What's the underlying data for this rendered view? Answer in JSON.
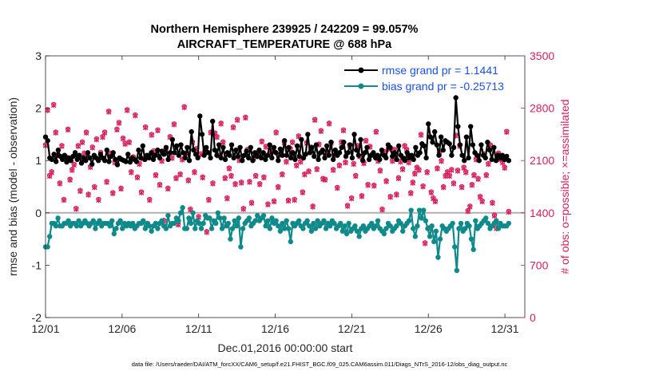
{
  "chart_data": {
    "type": "line",
    "title": "Northern Hemisphere 239925 / 242209 = 99.057%",
    "subtitle": "AIRCRAFT_TEMPERATURE @ 688 hPa",
    "xlabel": "Dec.01,2016 00:00:00 start",
    "ylabel_left": "rmse and bias (model - observation)",
    "ylabel_right": "# of obs: o=possible; ×=assimilated",
    "footer": "data file: /Users/raeder/DAI/ATM_forcXX/CAM6_setup/f.e21.FHIST_BGC.f09_025.CAM6assim.011/Diags_NTrS_2016-12/obs_diag_output.nc",
    "xlim": [
      1,
      32.3
    ],
    "ylim_left": [
      -2,
      3
    ],
    "ylim_right": [
      0,
      3500
    ],
    "x_ticks": [
      1,
      6,
      11,
      16,
      21,
      26,
      31
    ],
    "x_tick_labels": [
      "12/01",
      "12/06",
      "12/11",
      "12/16",
      "12/21",
      "12/26",
      "12/31"
    ],
    "y_ticks_left": [
      -2,
      -1,
      0,
      1,
      2,
      3
    ],
    "y_tick_labels_left": [
      "-2",
      "-1",
      "0",
      "1",
      "2",
      "3"
    ],
    "y_ticks_right": [
      0,
      700,
      1400,
      2100,
      2800,
      3500
    ],
    "y_tick_labels_right": [
      "0",
      "700",
      "1400",
      "2100",
      "2800",
      "3500"
    ],
    "zero_line": 0,
    "colors": {
      "rmse": "#000000",
      "bias": "#0f8a8a",
      "obs": "#d81e5b",
      "zero": "#b0b0b0",
      "legend_text": "#1a50e6"
    },
    "legend": {
      "position": "top-right",
      "entries": [
        "rmse grand pr = 1.1441",
        "bias grand pr = -0.25713"
      ]
    },
    "series": [
      {
        "name": "rmse",
        "values": [
          1.45,
          1.38,
          1.05,
          1.02,
          1.12,
          0.98,
          1.2,
          1.08,
          1.02,
          1.1,
          0.97,
          1.05,
          1.0,
          1.08,
          1.15,
          1.02,
          1.1,
          0.95,
          1.05,
          1.0,
          1.15,
          1.05,
          0.93,
          1.1,
          1.05,
          1.0,
          1.12,
          1.05,
          1.0,
          1.2,
          0.98,
          1.08,
          1.15,
          1.02,
          0.92,
          1.05,
          1.02,
          1.0,
          0.98,
          1.12,
          0.97,
          1.05,
          1.02,
          0.98,
          1.2,
          1.05,
          1.28,
          1.02,
          1.1,
          1.05,
          1.15,
          1.02,
          1.1,
          1.2,
          1.05,
          1.18,
          1.12,
          1.25,
          1.02,
          1.15,
          1.4,
          1.15,
          1.28,
          1.1,
          1.3,
          1.15,
          1.05,
          1.25,
          1.0,
          1.55,
          1.2,
          1.12,
          1.05,
          1.85,
          1.5,
          1.1,
          1.25,
          1.15,
          1.05,
          1.75,
          1.2,
          1.1,
          1.3,
          1.05,
          1.25,
          1.02,
          1.15,
          1.1,
          1.3,
          1.05,
          1.2,
          1.08,
          1.25,
          1.0,
          1.1,
          1.18,
          1.05,
          1.25,
          1.0,
          1.15,
          1.08,
          1.2,
          1.05,
          1.15,
          1.02,
          1.1,
          1.3,
          1.05,
          1.25,
          1.15,
          1.0,
          1.22,
          1.1,
          1.38,
          1.1,
          1.25,
          1.05,
          1.15,
          1.02,
          1.28,
          1.08,
          1.4,
          1.05,
          1.12,
          1.5,
          1.15,
          1.25,
          1.08,
          1.3,
          1.02,
          1.15,
          1.2,
          1.05,
          1.28,
          1.1,
          1.35,
          1.02,
          1.2,
          1.1,
          1.15,
          1.25,
          1.35,
          1.08,
          1.15,
          1.3,
          1.05,
          1.5,
          1.2,
          1.1,
          1.4,
          1.0,
          1.15,
          1.25,
          1.02,
          1.1,
          1.15,
          1.05,
          1.1,
          1.02,
          1.2,
          1.1,
          1.05,
          1.3,
          1.25,
          1.08,
          1.15,
          1.02,
          1.28,
          1.1,
          1.05,
          1.0,
          1.15,
          1.05,
          1.1,
          1.02,
          1.25,
          1.1,
          1.15,
          1.32,
          1.28,
          1.05,
          1.7,
          1.45,
          1.35,
          1.55,
          1.3,
          1.1,
          1.45,
          1.2,
          1.38,
          1.35,
          1.32,
          1.1,
          1.25,
          2.2,
          1.65,
          1.3,
          1.1,
          1.0,
          1.45,
          1.05,
          1.65,
          1.3,
          1.15,
          1.1,
          1.0,
          1.3,
          1.1,
          1.05,
          1.35,
          1.2,
          1.02,
          1.25,
          1.0,
          1.1,
          1.05,
          1.1,
          1.02,
          1.08,
          1.0
        ]
      },
      {
        "name": "bias",
        "values": [
          -0.65,
          -0.65,
          -0.45,
          -0.2,
          -0.2,
          -0.25,
          -0.1,
          -0.25,
          -0.25,
          -0.2,
          -0.2,
          -0.15,
          -0.25,
          -0.2,
          -0.2,
          -0.25,
          -0.15,
          -0.25,
          -0.2,
          -0.15,
          -0.2,
          -0.25,
          -0.2,
          -0.15,
          -0.3,
          -0.2,
          -0.15,
          -0.25,
          -0.2,
          -0.2,
          -0.2,
          -0.25,
          -0.15,
          -0.4,
          -0.3,
          -0.2,
          -0.15,
          -0.3,
          -0.2,
          -0.25,
          -0.2,
          -0.25,
          -0.2,
          -0.3,
          -0.25,
          -0.2,
          -0.2,
          -0.15,
          -0.3,
          -0.2,
          -0.25,
          -0.35,
          -0.25,
          -0.2,
          -0.3,
          -0.2,
          -0.15,
          -0.25,
          -0.3,
          -0.05,
          -0.25,
          -0.2,
          -0.2,
          -0.1,
          -0.15,
          0.0,
          0.1,
          -0.3,
          -0.3,
          -0.1,
          -0.2,
          0.0,
          -0.3,
          -0.15,
          -0.2,
          -0.3,
          -0.2,
          -0.05,
          -0.1,
          -0.1,
          -0.3,
          -0.15,
          -0.2,
          0.0,
          -0.1,
          -0.3,
          -0.1,
          -0.25,
          -0.2,
          -0.5,
          -0.3,
          -0.15,
          -0.25,
          -0.1,
          -0.65,
          -0.3,
          -0.2,
          -0.15,
          -0.1,
          -0.25,
          -0.2,
          -0.15,
          -0.05,
          -0.15,
          -0.1,
          -0.05,
          -0.25,
          -0.15,
          -0.3,
          -0.1,
          -0.2,
          -0.15,
          -0.25,
          -0.35,
          -0.2,
          -0.3,
          -0.15,
          -0.3,
          -0.55,
          -0.2,
          -0.25,
          -0.2,
          -0.15,
          -0.25,
          -0.3,
          -0.2,
          -0.15,
          -0.25,
          -0.35,
          -0.2,
          -0.3,
          -0.15,
          -0.25,
          -0.2,
          -0.15,
          -0.3,
          -0.2,
          -0.25,
          -0.15,
          -0.2,
          -0.3,
          -0.25,
          -0.2,
          -0.35,
          -0.25,
          -0.4,
          -0.2,
          -0.35,
          -0.3,
          -0.25,
          -0.35,
          -0.45,
          -0.3,
          -0.25,
          -0.35,
          -0.3,
          -0.25,
          -0.2,
          -0.3,
          -0.25,
          -0.15,
          -0.3,
          -0.35,
          -0.4,
          -0.3,
          -0.2,
          -0.25,
          -0.35,
          -0.3,
          -0.25,
          -0.15,
          -0.2,
          -0.35,
          -0.25,
          -0.2,
          -0.15,
          0.05,
          -0.3,
          -0.45,
          -0.25,
          0.05,
          -0.1,
          0.05,
          -0.15,
          -0.3,
          -0.45,
          -0.25,
          -0.55,
          -0.35,
          -0.85,
          -0.5,
          -0.25,
          -0.3,
          -0.35,
          -0.3,
          -0.25,
          -0.2,
          -0.65,
          -1.1,
          -0.3,
          -0.2,
          -0.35,
          -0.3,
          -0.2,
          -0.25,
          -0.5,
          -0.7,
          -0.15,
          -0.3,
          -0.25,
          -0.2,
          -0.15,
          -0.1,
          -0.2,
          -0.3,
          -0.25,
          -0.2,
          -0.15,
          -0.3,
          -0.2,
          -0.25,
          -0.25,
          -0.25,
          -0.2
        ]
      },
      {
        "name": "obs_possible",
        "marker": "o",
        "values": [
          2310,
          2780,
          1900,
          1950,
          2850,
          2480,
          2180,
          1800,
          2300,
          1580,
          2150,
          2520,
          1850,
          1980,
          2050,
          1460,
          2300,
          1700,
          2350,
          2200,
          2480,
          1650,
          2020,
          2280,
          1750,
          2390,
          1580,
          2210,
          2420,
          2480,
          1820,
          2760,
          2200,
          1670,
          2080,
          2520,
          2610,
          1730,
          2400,
          2330,
          2780,
          2350,
          1950,
          2150,
          2710,
          1880,
          2060,
          1680,
          2130,
          2550,
          1260,
          1580,
          2450,
          2230,
          1910,
          2510,
          1780,
          2100,
          1300,
          2250,
          1730,
          2420,
          2140,
          2590,
          1870,
          1250,
          1920,
          2120,
          2820,
          2200,
          1840,
          1450,
          2350,
          1950,
          2260,
          1350,
          2190,
          1880,
          2220,
          1150,
          1580,
          2480,
          1800,
          2470,
          2420,
          2170,
          2600,
          2350,
          1870,
          1600,
          2000,
          1900,
          2550,
          1790,
          2650,
          2110,
          1810,
          1460,
          2680,
          2250,
          1820,
          1540,
          2140,
          1900,
          2160,
          1790,
          2360,
          1880,
          2290,
          1520,
          2200,
          2260,
          1560,
          2480,
          1750,
          2180,
          1920,
          2350,
          2090,
          1570,
          2260,
          2350,
          1580,
          2040,
          2430,
          2090,
          1680,
          1920,
          2340,
          1960,
          2280,
          1490,
          2650,
          1990,
          2320,
          2500,
          1860,
          1850,
          2210,
          2600,
          2340,
          1980,
          2180,
          1740,
          2040,
          2350,
          2510,
          2080,
          1500,
          2310,
          1600,
          2060,
          1900,
          2300,
          2160,
          1630,
          2070,
          2370,
          1780,
          2290,
          2180,
          1770,
          2490,
          2100,
          1970,
          1450,
          2220,
          1830,
          2260,
          1620,
          2100,
          2250,
          1650,
          1870,
          2090,
          1990,
          2300,
          2250,
          2080,
          1670,
          1810,
          1930,
          2010,
          1980,
          2450,
          1760,
          1000,
          1950,
          1200,
          1680,
          1600,
          1560,
          2000,
          2200,
          2100,
          1750,
          1900,
          1950,
          1900,
          1980,
          1800,
          2440,
          1970,
          2300,
          1750,
          2010,
          1950,
          1430,
          1490,
          1780,
          1910,
          2120,
          1860,
          1620,
          1560,
          2190,
          1910,
          2060,
          2310,
          1540,
          1370,
          1200,
          2200,
          2120,
          2080,
          2010,
          2490,
          1420
        ]
      },
      {
        "name": "obs_assimilated",
        "marker": "x",
        "values": [
          2300,
          2770,
          1890,
          1940,
          2840,
          2470,
          2170,
          1790,
          2290,
          1570,
          2140,
          2510,
          1840,
          1970,
          2040,
          1450,
          2290,
          1690,
          2340,
          2190,
          2470,
          1640,
          2010,
          2270,
          1740,
          2380,
          1570,
          2200,
          2410,
          2470,
          1810,
          2750,
          2190,
          1660,
          2070,
          2510,
          2600,
          1720,
          2390,
          2320,
          2770,
          2340,
          1940,
          2140,
          2700,
          1870,
          2050,
          1670,
          2120,
          2540,
          1250,
          1570,
          2440,
          2220,
          1900,
          2500,
          1770,
          2090,
          1290,
          2240,
          1720,
          2410,
          2130,
          2580,
          1860,
          1240,
          1910,
          2110,
          2810,
          2190,
          1830,
          1440,
          2340,
          1940,
          2250,
          1340,
          2180,
          1870,
          2210,
          1140,
          1570,
          2470,
          1790,
          2460,
          2410,
          2160,
          2590,
          2340,
          1860,
          1590,
          1990,
          1890,
          2540,
          1780,
          2640,
          2100,
          1800,
          1450,
          2670,
          2240,
          1810,
          1530,
          2130,
          1890,
          2150,
          1780,
          2350,
          1870,
          2280,
          1510,
          2190,
          2250,
          1550,
          2470,
          1740,
          2170,
          1910,
          2340,
          2080,
          1560,
          2250,
          2340,
          1570,
          2030,
          2420,
          2080,
          1670,
          1910,
          2330,
          1950,
          2270,
          1480,
          2640,
          1980,
          2310,
          2490,
          1850,
          1840,
          2200,
          2590,
          2330,
          1970,
          2170,
          1730,
          2030,
          2340,
          2500,
          2070,
          1490,
          2300,
          1590,
          2050,
          1890,
          2290,
          2150,
          1620,
          2060,
          2360,
          1770,
          2280,
          2170,
          1760,
          2480,
          2090,
          1960,
          1440,
          2210,
          1820,
          2250,
          1610,
          2090,
          2240,
          1640,
          1860,
          2080,
          1980,
          2290,
          2240,
          2070,
          1660,
          1800,
          1920,
          2000,
          1970,
          2440,
          1750,
          990,
          1940,
          1190,
          1670,
          1590,
          1550,
          1990,
          2190,
          2090,
          1740,
          1890,
          1940,
          1890,
          1970,
          1790,
          2430,
          1960,
          2290,
          1740,
          2000,
          1940,
          1420,
          1480,
          1770,
          1900,
          2110,
          1850,
          1610,
          1550,
          2180,
          1900,
          2050,
          2300,
          1530,
          1360,
          1190,
          2190,
          2110,
          2070,
          2000,
          2480,
          1410
        ]
      }
    ]
  }
}
